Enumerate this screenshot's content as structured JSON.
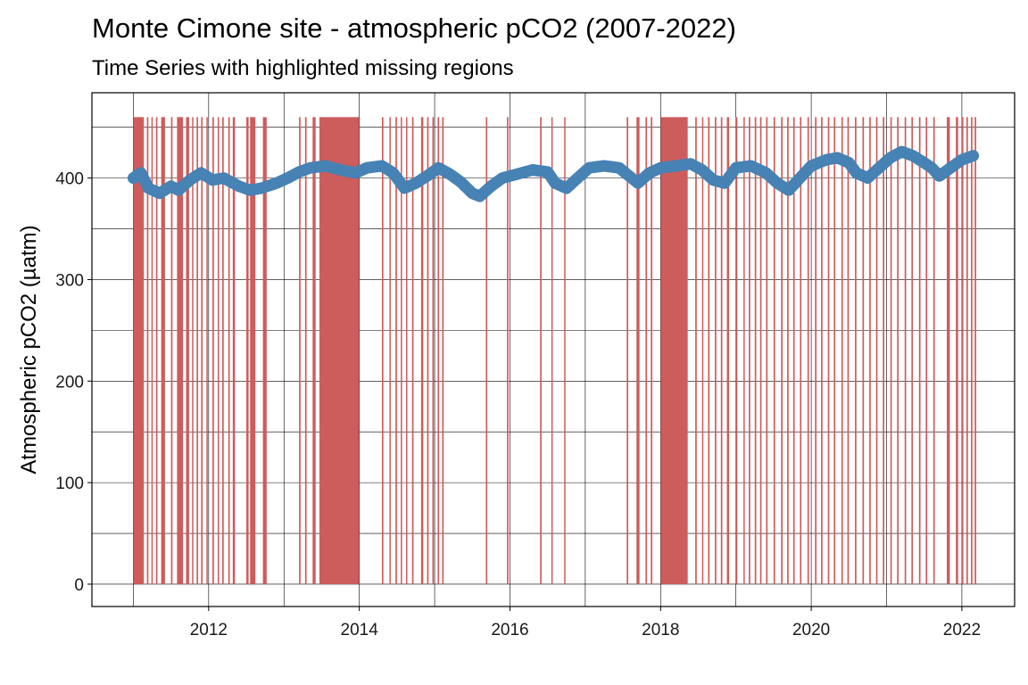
{
  "chart_data": {
    "type": "line",
    "title": "Monte Cimone site - atmospheric pCO2 (2007-2022)",
    "subtitle": "Time Series with highlighted missing regions",
    "xlabel": "",
    "ylabel": "Atmospheric pCO2 (µatm)",
    "xlim": [
      2010.45,
      2022.7
    ],
    "ylim": [
      -22,
      484
    ],
    "x_ticks": [
      2012,
      2014,
      2016,
      2018,
      2020,
      2022
    ],
    "x_tick_labels": [
      "2012",
      "2014",
      "2016",
      "2018",
      "2020",
      "2022"
    ],
    "y_ticks": [
      0,
      100,
      200,
      300,
      400
    ],
    "y_tick_labels": [
      "0",
      "100",
      "200",
      "300",
      "400"
    ],
    "grid": true,
    "colors": {
      "series": "#4682b4",
      "missing": "#cd5c5c"
    },
    "missing_height": 460,
    "series": [
      {
        "x": [
          2011.0,
          2011.1,
          2011.2,
          2011.35,
          2011.5,
          2011.6,
          2011.75,
          2011.9,
          2012.05,
          2012.2,
          2012.4,
          2012.55,
          2012.7,
          2012.9,
          2013.05,
          2013.2,
          2013.35,
          2013.55,
          2013.75,
          2013.95,
          2014.1,
          2014.3,
          2014.45,
          2014.6,
          2014.75,
          2014.9,
          2015.05,
          2015.2,
          2015.35,
          2015.5,
          2015.6,
          2015.75,
          2015.9,
          2016.1,
          2016.3,
          2016.5,
          2016.6,
          2016.75,
          2016.9,
          2017.05,
          2017.25,
          2017.45,
          2017.55,
          2017.7,
          2017.85,
          2018.0,
          2018.2,
          2018.4,
          2018.55,
          2018.7,
          2018.85,
          2019.0,
          2019.2,
          2019.4,
          2019.55,
          2019.7,
          2019.85,
          2020.0,
          2020.2,
          2020.35,
          2020.5,
          2020.6,
          2020.75,
          2020.9,
          2021.05,
          2021.2,
          2021.35,
          2021.5,
          2021.6,
          2021.7,
          2021.85,
          2022.0,
          2022.15
        ],
        "values": [
          400,
          405,
          390,
          385,
          392,
          388,
          398,
          405,
          398,
          400,
          392,
          388,
          390,
          395,
          400,
          406,
          410,
          412,
          408,
          405,
          410,
          412,
          405,
          390,
          395,
          402,
          410,
          404,
          396,
          385,
          382,
          392,
          400,
          404,
          408,
          406,
          395,
          390,
          400,
          410,
          412,
          410,
          404,
          395,
          405,
          410,
          412,
          414,
          408,
          398,
          395,
          410,
          412,
          405,
          395,
          388,
          400,
          412,
          418,
          420,
          415,
          405,
          400,
          410,
          420,
          426,
          422,
          415,
          410,
          402,
          410,
          418,
          422
        ]
      }
    ],
    "missing_regions": [
      [
        2011.0,
        2011.14
      ],
      [
        2011.18,
        2011.2
      ],
      [
        2011.24,
        2011.25
      ],
      [
        2011.3,
        2011.32
      ],
      [
        2011.37,
        2011.42
      ],
      [
        2011.5,
        2011.52
      ],
      [
        2011.58,
        2011.66
      ],
      [
        2011.7,
        2011.74
      ],
      [
        2011.78,
        2011.79
      ],
      [
        2011.84,
        2011.86
      ],
      [
        2011.9,
        2011.92
      ],
      [
        2011.97,
        2011.98
      ],
      [
        2012.05,
        2012.07
      ],
      [
        2012.12,
        2012.13
      ],
      [
        2012.18,
        2012.2
      ],
      [
        2012.26,
        2012.28
      ],
      [
        2012.32,
        2012.35
      ],
      [
        2012.5,
        2012.53
      ],
      [
        2012.55,
        2012.62
      ],
      [
        2012.72,
        2012.77
      ],
      [
        2013.2,
        2013.22
      ],
      [
        2013.28,
        2013.3
      ],
      [
        2013.38,
        2013.42
      ],
      [
        2013.47,
        2014.0
      ],
      [
        2014.3,
        2014.32
      ],
      [
        2014.4,
        2014.41
      ],
      [
        2014.48,
        2014.5
      ],
      [
        2014.55,
        2014.56
      ],
      [
        2014.62,
        2014.63
      ],
      [
        2014.7,
        2014.72
      ],
      [
        2014.82,
        2014.85
      ],
      [
        2014.9,
        2014.92
      ],
      [
        2014.97,
        2014.99
      ],
      [
        2015.04,
        2015.06
      ],
      [
        2015.1,
        2015.12
      ],
      [
        2015.68,
        2015.7
      ],
      [
        2015.96,
        2015.98
      ],
      [
        2016.4,
        2016.42
      ],
      [
        2016.55,
        2016.56
      ],
      [
        2016.72,
        2016.73
      ],
      [
        2017.55,
        2017.57
      ],
      [
        2017.68,
        2017.72
      ],
      [
        2017.8,
        2017.82
      ],
      [
        2017.87,
        2017.89
      ],
      [
        2018.0,
        2018.36
      ],
      [
        2018.46,
        2018.48
      ],
      [
        2018.55,
        2018.56
      ],
      [
        2018.63,
        2018.65
      ],
      [
        2018.72,
        2018.74
      ],
      [
        2018.8,
        2018.82
      ],
      [
        2018.88,
        2018.91
      ],
      [
        2019.0,
        2019.02
      ],
      [
        2019.1,
        2019.11
      ],
      [
        2019.17,
        2019.19
      ],
      [
        2019.25,
        2019.27
      ],
      [
        2019.32,
        2019.34
      ],
      [
        2019.4,
        2019.42
      ],
      [
        2019.5,
        2019.52
      ],
      [
        2019.6,
        2019.62
      ],
      [
        2019.68,
        2019.7
      ],
      [
        2019.76,
        2019.78
      ],
      [
        2019.85,
        2019.87
      ],
      [
        2019.95,
        2019.97
      ],
      [
        2020.05,
        2020.07
      ],
      [
        2020.13,
        2020.15
      ],
      [
        2020.22,
        2020.24
      ],
      [
        2020.3,
        2020.32
      ],
      [
        2020.4,
        2020.42
      ],
      [
        2020.48,
        2020.5
      ],
      [
        2020.58,
        2020.6
      ],
      [
        2020.68,
        2020.7
      ],
      [
        2020.77,
        2020.79
      ],
      [
        2020.86,
        2020.88
      ],
      [
        2020.95,
        2020.97
      ],
      [
        2021.05,
        2021.07
      ],
      [
        2021.14,
        2021.16
      ],
      [
        2021.24,
        2021.26
      ],
      [
        2021.33,
        2021.35
      ],
      [
        2021.43,
        2021.45
      ],
      [
        2021.52,
        2021.54
      ],
      [
        2021.62,
        2021.64
      ],
      [
        2021.8,
        2021.84
      ],
      [
        2021.92,
        2021.95
      ],
      [
        2022.0,
        2022.02
      ],
      [
        2022.06,
        2022.08
      ],
      [
        2022.12,
        2022.14
      ],
      [
        2022.17,
        2022.19
      ]
    ]
  }
}
